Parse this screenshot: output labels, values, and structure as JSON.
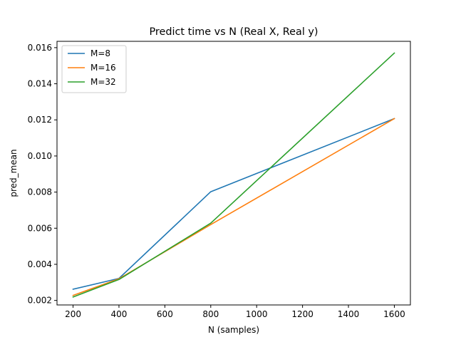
{
  "chart_data": {
    "type": "line",
    "title": "Predict time vs N (Real X, Real y)",
    "xlabel": "N (samples)",
    "ylabel": "pred_mean",
    "x": [
      200,
      400,
      800,
      1600
    ],
    "xlim": [
      130,
      1670
    ],
    "ylim": [
      0.00175,
      0.01635
    ],
    "xticks": [
      200,
      400,
      600,
      800,
      1000,
      1200,
      1400,
      1600
    ],
    "yticks": [
      0.002,
      0.004,
      0.006,
      0.008,
      0.01,
      0.012,
      0.014,
      0.016
    ],
    "xtick_labels": [
      "200",
      "400",
      "600",
      "800",
      "1000",
      "1200",
      "1400",
      "1600"
    ],
    "ytick_labels": [
      "0.002",
      "0.004",
      "0.006",
      "0.008",
      "0.010",
      "0.012",
      "0.014",
      "0.016"
    ],
    "grid": false,
    "legend_position": "top-left",
    "series": [
      {
        "name": "M=8",
        "color": "#1f77b4",
        "values": [
          0.00262,
          0.00322,
          0.00802,
          0.01207
        ]
      },
      {
        "name": "M=16",
        "color": "#ff7f0e",
        "values": [
          0.00228,
          0.0032,
          0.0062,
          0.01207
        ]
      },
      {
        "name": "M=32",
        "color": "#2ca02c",
        "values": [
          0.00219,
          0.00316,
          0.00628,
          0.0157
        ]
      }
    ]
  }
}
